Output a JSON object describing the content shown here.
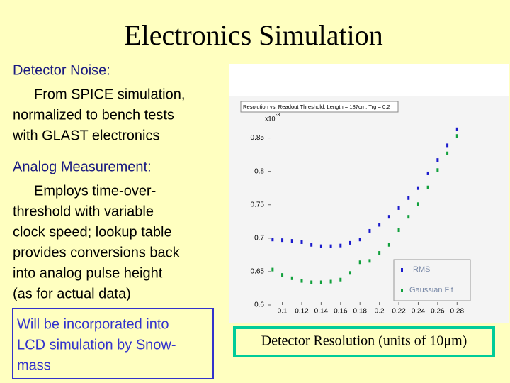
{
  "title": "Electronics Simulation",
  "sections": [
    {
      "heading": "Detector Noise:",
      "lines": [
        "From SPICE simulation,",
        "normalized to bench tests",
        "with GLAST electronics"
      ]
    },
    {
      "heading": "Analog Measurement:",
      "lines": [
        "Employs time-over-",
        "threshold with variable",
        "clock speed; lookup table",
        "provides conversions back",
        "into analog pulse height",
        "(as for actual data)"
      ]
    }
  ],
  "note": {
    "lines": [
      "Will be incorporated into",
      "LCD simulation by Snow-",
      "mass"
    ]
  },
  "caption": "Detector Resolution (units of 10μm)",
  "chart_data": {
    "type": "scatter",
    "title": "Resolution vs. Readout Threshold: Length = 187cm, Trg = 0.2",
    "y_multiplier": "x10",
    "y_multiplier_exponent": "-3",
    "x": [
      0.09,
      0.1,
      0.11,
      0.12,
      0.13,
      0.14,
      0.15,
      0.16,
      0.17,
      0.18,
      0.19,
      0.2,
      0.21,
      0.22,
      0.23,
      0.24,
      0.25,
      0.26,
      0.27,
      0.28
    ],
    "series": [
      {
        "name": "RMS",
        "color": "#1a1acc",
        "values": [
          0.698,
          0.697,
          0.696,
          0.694,
          0.69,
          0.688,
          0.688,
          0.689,
          0.693,
          0.698,
          0.711,
          0.72,
          0.732,
          0.745,
          0.76,
          0.775,
          0.797,
          0.817,
          0.839,
          0.863
        ]
      },
      {
        "name": "Gaussian Fit",
        "color": "#11a03c",
        "values": [
          0.653,
          0.645,
          0.64,
          0.636,
          0.634,
          0.634,
          0.635,
          0.638,
          0.648,
          0.664,
          0.666,
          0.678,
          0.69,
          0.712,
          0.732,
          0.751,
          0.776,
          0.802,
          0.827,
          0.853
        ]
      }
    ],
    "xlim": [
      0.085,
      0.29
    ],
    "ylim": [
      0.6,
      0.875
    ],
    "xticks": [
      0.1,
      0.12,
      0.14,
      0.16,
      0.18,
      0.2,
      0.22,
      0.24,
      0.26,
      0.28
    ],
    "yticks": [
      0.6,
      0.65,
      0.7,
      0.75,
      0.8,
      0.85
    ]
  }
}
